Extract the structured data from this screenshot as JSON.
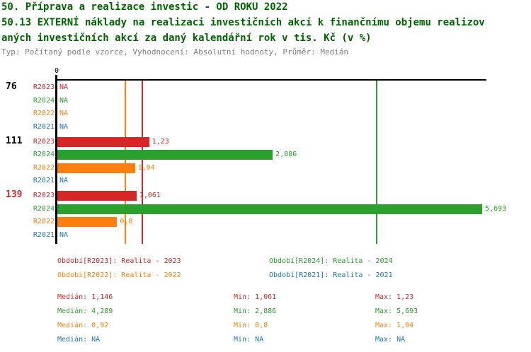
{
  "header": {
    "title_line1": "50. Příprava a realizace investic - OD ROKU 2022",
    "title_line2": "50.13 EXTERNÍ náklady na realizaci investičních akcí k finančnímu objemu realizov",
    "title_line3": "aných investičních akcí za daný kalendářní rok v tis. Kč (v %)",
    "meta": "Typ: Počítaný podle vzorce, Vyhodnocení: Absolutní hodnoty, Průměr: Medián"
  },
  "colors": {
    "R2023": "#d62728",
    "R2024": "#2ca02c",
    "R2022": "#ff7f0e",
    "R2021": "#1f77b4",
    "title": "#006400",
    "meta": "#7f7f7f",
    "axis": "#000000",
    "group_label": "#000000",
    "group_label_highlight": "#d62728"
  },
  "chart_data": {
    "type": "bar",
    "orientation": "horizontal",
    "axis_zero_label": "0",
    "na_label": "NA",
    "x_range": [
      0,
      5.76
    ],
    "grid": false,
    "series_order": [
      "R2023",
      "R2024",
      "R2022",
      "R2021"
    ],
    "groups": [
      {
        "label": "76",
        "highlight": false,
        "rows": [
          {
            "series": "R2023",
            "value": null,
            "display": "NA"
          },
          {
            "series": "R2024",
            "value": null,
            "display": "NA"
          },
          {
            "series": "R2022",
            "value": null,
            "display": "NA"
          },
          {
            "series": "R2021",
            "value": null,
            "display": "NA"
          }
        ]
      },
      {
        "label": "111",
        "highlight": false,
        "rows": [
          {
            "series": "R2023",
            "value": 1.23,
            "display": "1,23"
          },
          {
            "series": "R2024",
            "value": 2.886,
            "display": "2,886"
          },
          {
            "series": "R2022",
            "value": 1.04,
            "display": "1,04"
          },
          {
            "series": "R2021",
            "value": null,
            "display": "NA"
          }
        ]
      },
      {
        "label": "139",
        "highlight": true,
        "rows": [
          {
            "series": "R2023",
            "value": 1.061,
            "display": "1,061"
          },
          {
            "series": "R2024",
            "value": 5.693,
            "display": "5,693"
          },
          {
            "series": "R2022",
            "value": 0.8,
            "display": "0,8"
          },
          {
            "series": "R2021",
            "value": null,
            "display": "NA"
          }
        ]
      }
    ],
    "median_lines": [
      {
        "series": "R2023",
        "value": 1.146
      },
      {
        "series": "R2024",
        "value": 4.289
      },
      {
        "series": "R2022",
        "value": 0.92
      }
    ]
  },
  "legend": {
    "items": [
      {
        "series": "R2023",
        "label": "Období[R2023]: Realita - 2023"
      },
      {
        "series": "R2024",
        "label": "Období[R2024]: Realita - 2024"
      },
      {
        "series": "R2022",
        "label": "Období[R2022]: Realita - 2022"
      },
      {
        "series": "R2021",
        "label": "Období[R2021]: Realita - 2021"
      }
    ]
  },
  "stats": {
    "rows": [
      {
        "series": "R2023",
        "median": "Medián: 1,146",
        "min": "Min: 1,061",
        "max": "Max: 1,23"
      },
      {
        "series": "R2024",
        "median": "Medián: 4,289",
        "min": "Min: 2,886",
        "max": "Max: 5,693"
      },
      {
        "series": "R2022",
        "median": "Medián: 0,92",
        "min": "Min: 0,8",
        "max": "Max: 1,04"
      },
      {
        "series": "R2021",
        "median": "Medián: NA",
        "min": "Min: NA",
        "max": "Max: NA"
      }
    ]
  }
}
